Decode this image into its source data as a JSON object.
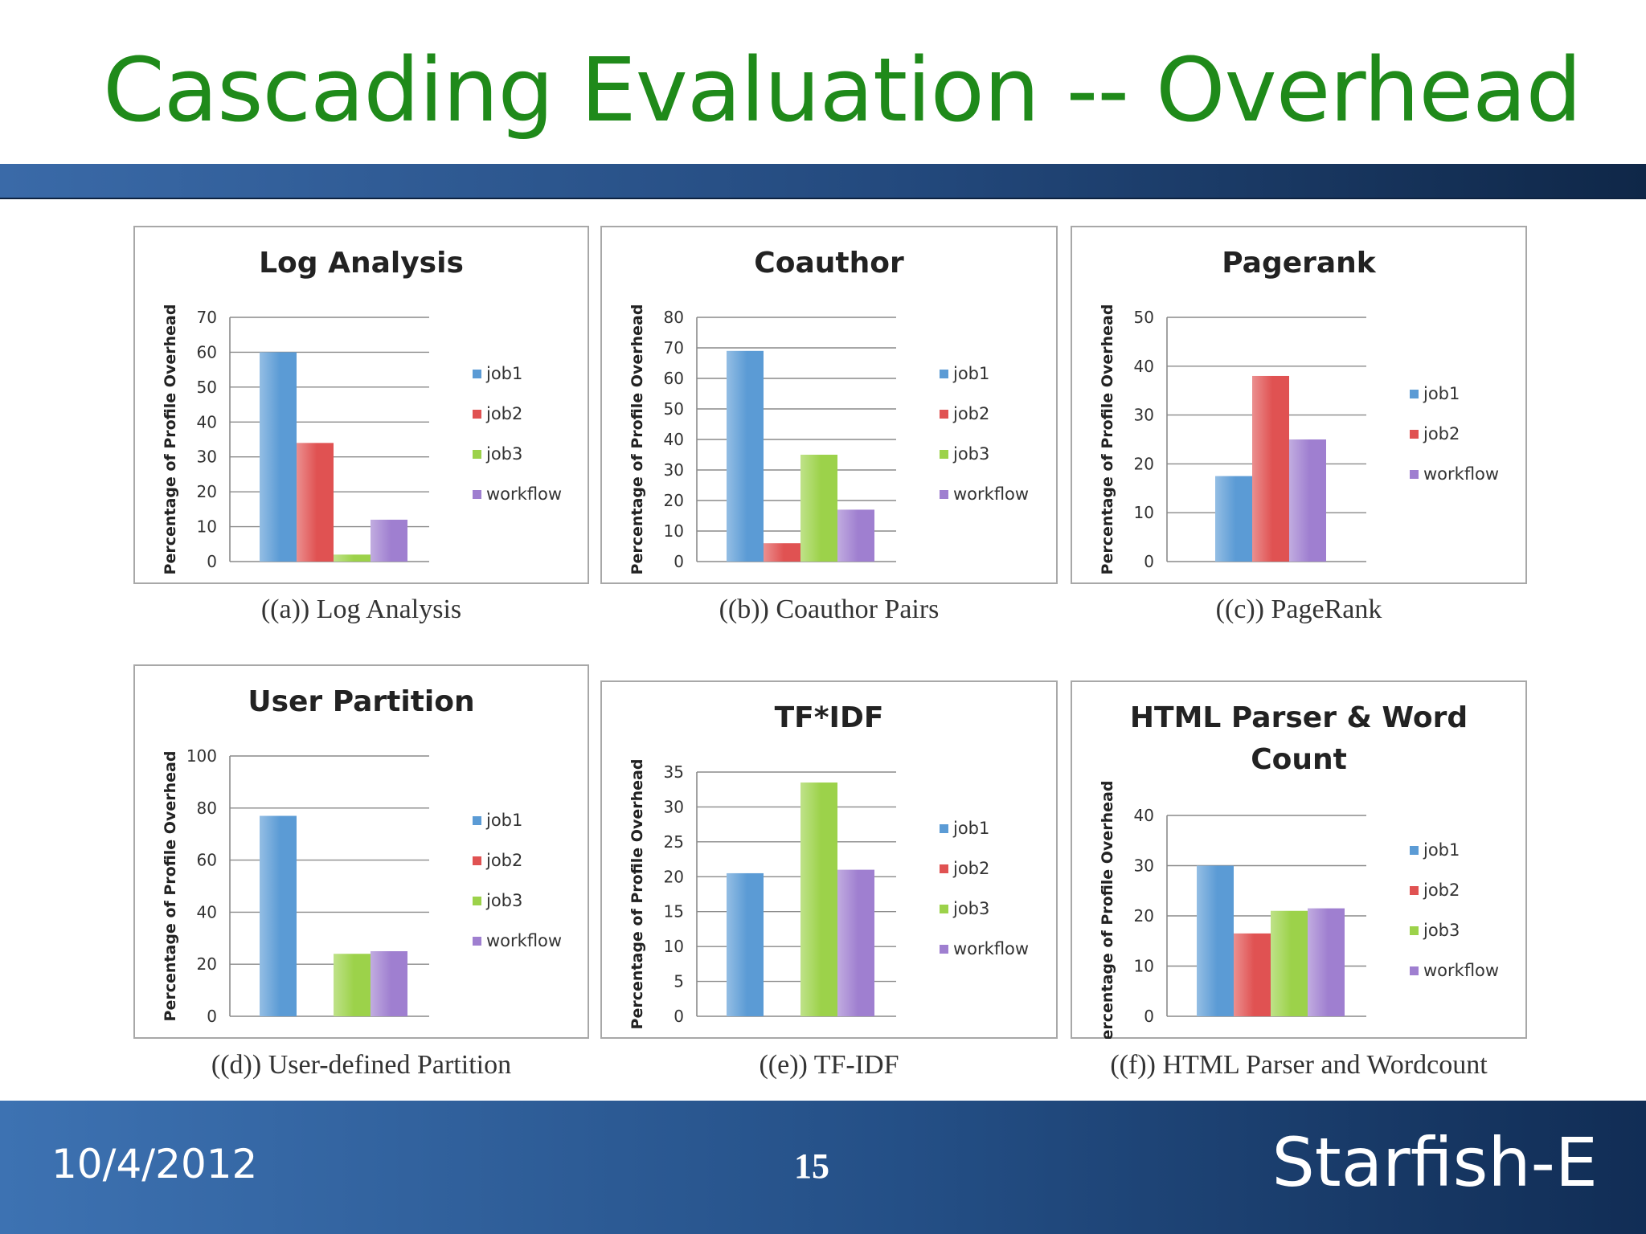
{
  "slide": {
    "title": "Cascading Evaluation -- Overhead",
    "date": "10/4/2012",
    "page_number": "15",
    "brand": "Starfish-E"
  },
  "colors": {
    "title": "#1f8a1a",
    "job1": "#5b9bd5",
    "job2": "#e05252",
    "job3": "#9cd24a",
    "workflow": "#9f7fd0"
  },
  "chart_data": [
    {
      "type": "bar",
      "title": "Log Analysis",
      "caption": "((a)) Log Analysis",
      "ylabel": "Percentage of Profile Overhead",
      "ylim": [
        0,
        70
      ],
      "yticks": [
        0,
        10,
        20,
        30,
        40,
        50,
        60,
        70
      ],
      "grid": true,
      "legend": "right",
      "series": [
        {
          "name": "job1",
          "values": [
            60
          ]
        },
        {
          "name": "job2",
          "values": [
            34
          ]
        },
        {
          "name": "job3",
          "values": [
            2
          ]
        },
        {
          "name": "workflow",
          "values": [
            12
          ]
        }
      ]
    },
    {
      "type": "bar",
      "title": "Coauthor",
      "caption": "((b)) Coauthor Pairs",
      "ylabel": "Percentage of Profile Overhead",
      "ylim": [
        0,
        80
      ],
      "yticks": [
        0,
        10,
        20,
        30,
        40,
        50,
        60,
        70,
        80
      ],
      "grid": true,
      "legend": "right",
      "series": [
        {
          "name": "job1",
          "values": [
            69
          ]
        },
        {
          "name": "job2",
          "values": [
            6
          ]
        },
        {
          "name": "job3",
          "values": [
            35
          ]
        },
        {
          "name": "workflow",
          "values": [
            17
          ]
        }
      ]
    },
    {
      "type": "bar",
      "title": "Pagerank",
      "caption": "((c)) PageRank",
      "ylabel": "Percentage of Profile Overhead",
      "ylim": [
        0,
        50
      ],
      "yticks": [
        0,
        10,
        20,
        30,
        40,
        50
      ],
      "grid": true,
      "legend": "right",
      "series": [
        {
          "name": "job1",
          "values": [
            17.5
          ]
        },
        {
          "name": "job2",
          "values": [
            38
          ]
        },
        {
          "name": "workflow",
          "values": [
            25
          ]
        }
      ]
    },
    {
      "type": "bar",
      "title": "User Partition",
      "caption": "((d)) User-defined Partition",
      "ylabel": "Percentage of Profile Overhead",
      "ylim": [
        0,
        100
      ],
      "yticks": [
        0,
        20,
        40,
        60,
        80,
        100
      ],
      "grid": true,
      "legend": "right",
      "series": [
        {
          "name": "job1",
          "values": [
            77
          ]
        },
        {
          "name": "job2",
          "values": [
            0
          ]
        },
        {
          "name": "job3",
          "values": [
            24
          ]
        },
        {
          "name": "workflow",
          "values": [
            25
          ]
        }
      ]
    },
    {
      "type": "bar",
      "title": "TF*IDF",
      "caption": "((e)) TF-IDF",
      "ylabel": "Percentage of Profile Overhead",
      "ylim": [
        0,
        35
      ],
      "yticks": [
        0,
        5,
        10,
        15,
        20,
        25,
        30,
        35
      ],
      "grid": true,
      "legend": "right",
      "series": [
        {
          "name": "job1",
          "values": [
            20.5
          ]
        },
        {
          "name": "job2",
          "values": [
            0
          ]
        },
        {
          "name": "job3",
          "values": [
            33.5
          ]
        },
        {
          "name": "workflow",
          "values": [
            21
          ]
        }
      ]
    },
    {
      "type": "bar",
      "title": "HTML Parser & Word Count",
      "title_lines": [
        "HTML Parser & Word",
        "Count"
      ],
      "caption": "((f)) HTML Parser and Wordcount",
      "ylabel": "Percentage of Profile Overhead",
      "ylim": [
        0,
        40
      ],
      "yticks": [
        0,
        10,
        20,
        30,
        40
      ],
      "grid": true,
      "legend": "right",
      "series": [
        {
          "name": "job1",
          "values": [
            30
          ]
        },
        {
          "name": "job2",
          "values": [
            16.5
          ]
        },
        {
          "name": "job3",
          "values": [
            21
          ]
        },
        {
          "name": "workflow",
          "values": [
            21.5
          ]
        }
      ]
    }
  ]
}
